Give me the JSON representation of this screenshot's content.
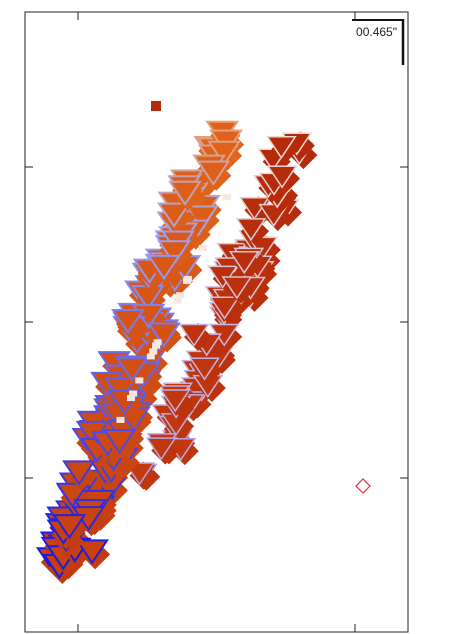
{
  "scale_bar": {
    "label": "00.465\""
  }
}
